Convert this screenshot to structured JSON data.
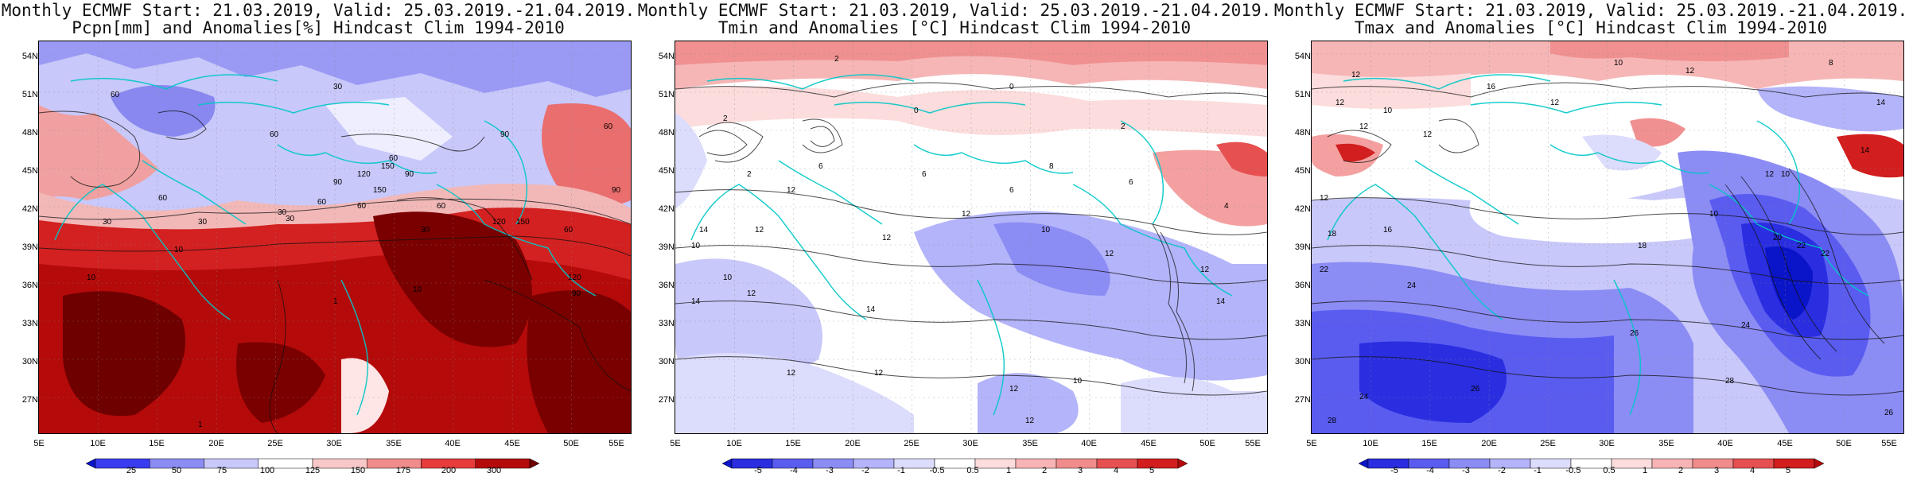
{
  "lat_ticks": [
    "54N",
    "51N",
    "48N",
    "45N",
    "42N",
    "39N",
    "36N",
    "33N",
    "30N",
    "27N"
  ],
  "lon_ticks": [
    "5E",
    "10E",
    "15E",
    "20E",
    "25E",
    "30E",
    "35E",
    "40E",
    "45E",
    "50E",
    "55E"
  ],
  "panels": [
    {
      "title_line1": "Monthly ECMWF Start: 21.03.2019, Valid: 25.03.2019.-21.04.2019.",
      "title_line2": "Pcpn[mm] and Anomalies[%] Hindcast Clim 1994-2010",
      "colorbar_labels": [
        "25",
        "50",
        "75",
        "100",
        "125",
        "150",
        "175",
        "200",
        "300"
      ],
      "colorbar_colors": [
        "#0a14c8",
        "#3a3cf0",
        "#8c8cf5",
        "#c8c8fa",
        "#ffffff",
        "#f8c8c8",
        "#f08c8c",
        "#e63c3c",
        "#b40a0a",
        "#6e0000"
      ],
      "contour_labels": [
        "60",
        "60",
        "30",
        "60",
        "90",
        "60",
        "30",
        "90",
        "120",
        "150",
        "150",
        "60",
        "90",
        "90",
        "30",
        "30",
        "60",
        "30",
        "120",
        "150",
        "60",
        "10",
        "10",
        "10",
        "1",
        "1",
        "60",
        "30",
        "120",
        "90",
        "60"
      ]
    },
    {
      "title_line1": "Monthly ECMWF Start: 21.03.2019, Valid: 25.03.2019.-21.04.2019.",
      "title_line2": "Tmin and Anomalies [°C] Hindcast Clim 1994-2010",
      "colorbar_labels": [
        "-5",
        "-4",
        "-3",
        "-2",
        "-1",
        "-0.5",
        "0.5",
        "1",
        "2",
        "3",
        "4",
        "5"
      ],
      "colorbar_colors": [
        "#0a14c8",
        "#2a2ee0",
        "#5a5cf0",
        "#8c8cf5",
        "#b4b4fa",
        "#dcdcfc",
        "#ffffff",
        "#fcdcdc",
        "#f8b4b4",
        "#f08c8c",
        "#e65050",
        "#d21e1e",
        "#b40a0a"
      ],
      "contour_labels": [
        "2",
        "0",
        "2",
        "0",
        "2",
        "2",
        "6",
        "6",
        "4",
        "6",
        "12",
        "8",
        "6",
        "12",
        "10",
        "14",
        "10",
        "12",
        "10",
        "12",
        "12",
        "14",
        "12",
        "12",
        "12",
        "12",
        "10",
        "12",
        "14",
        "14",
        "12"
      ]
    },
    {
      "title_line1": "Monthly ECMWF Start: 21.03.2019, Valid: 25.03.2019.-21.04.2019.",
      "title_line2": "Tmax and Anomalies [°C] Hindcast Clim 1994-2010",
      "colorbar_labels": [
        "-5",
        "-4",
        "-3",
        "-2",
        "-1",
        "-0.5",
        "0.5",
        "1",
        "2",
        "3",
        "4",
        "5"
      ],
      "colorbar_colors": [
        "#0a14c8",
        "#2a2ee0",
        "#5a5cf0",
        "#8c8cf5",
        "#b4b4fa",
        "#dcdcfc",
        "#ffffff",
        "#fcdcdc",
        "#f8b4b4",
        "#f08c8c",
        "#e65050",
        "#d21e1e",
        "#b40a0a"
      ],
      "contour_labels": [
        "12",
        "10",
        "8",
        "12",
        "10",
        "12",
        "14",
        "12",
        "16",
        "12",
        "14",
        "12",
        "12",
        "10",
        "10",
        "12",
        "18",
        "20",
        "22",
        "16",
        "18",
        "22",
        "24",
        "24",
        "26",
        "28",
        "24",
        "26",
        "28",
        "22",
        "26"
      ]
    }
  ]
}
